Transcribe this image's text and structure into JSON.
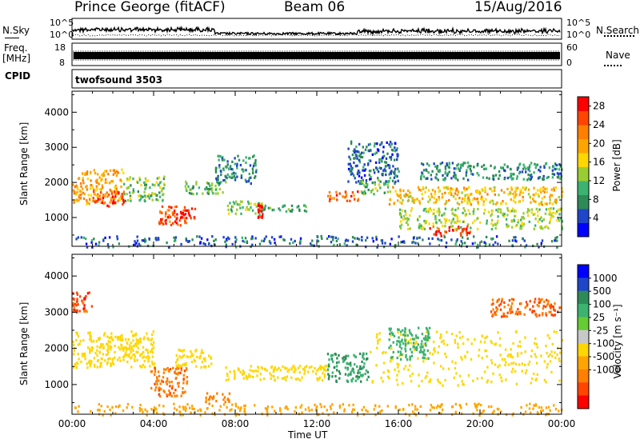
{
  "header": {
    "station": "Prince George (fitACF)",
    "beam": "Beam 06",
    "date": "15/Aug/2016"
  },
  "strips": {
    "nsky_label": "N.Sky",
    "nsearch_label": "N.Search",
    "freq_label_line1": "Freq.",
    "freq_label_line2": "[MHz]",
    "nave_label": "Nave",
    "cpid_label": "CPID",
    "cpid_value": "twofsound 3503",
    "nsky_ticks": [
      "10^5",
      "10^0"
    ],
    "nsearch_ticks": [
      "10^5",
      "10^0"
    ],
    "freq_ticks": [
      "18",
      "8"
    ],
    "nave_ticks": [
      "60",
      "0"
    ]
  },
  "chart_data": [
    {
      "type": "heatmap",
      "title": "",
      "ylabel": "Slant Range [km]",
      "xlabel": "",
      "ylim": [
        180,
        4600
      ],
      "yticks": [
        1000,
        2000,
        3000,
        4000
      ],
      "colorbar": {
        "label": "Power [dB]",
        "ticks": [
          4,
          8,
          12,
          16,
          20,
          24,
          28
        ],
        "range": [
          0,
          30
        ],
        "colors": [
          "#0000ff",
          "#1f46c8",
          "#2e8b57",
          "#3cb371",
          "#9acd32",
          "#ffd700",
          "#ffa500",
          "#ff7f00",
          "#ff4500",
          "#ff0000"
        ]
      },
      "blobs": [
        {
          "t": [
            0.0,
            2.5
          ],
          "r": [
            1400,
            2400
          ],
          "v": 20
        },
        {
          "t": [
            1.0,
            2.5
          ],
          "r": [
            1350,
            1800
          ],
          "v": 26
        },
        {
          "t": [
            2.5,
            4.5
          ],
          "r": [
            1500,
            2200
          ],
          "v": 12
        },
        {
          "t": [
            4.2,
            5.6
          ],
          "r": [
            800,
            1400
          ],
          "v": 24
        },
        {
          "t": [
            5.0,
            6.0
          ],
          "r": [
            900,
            1300
          ],
          "v": 28
        },
        {
          "t": [
            5.5,
            7.5
          ],
          "r": [
            1700,
            2100
          ],
          "v": 10
        },
        {
          "t": [
            7.0,
            9.0
          ],
          "r": [
            2000,
            2800
          ],
          "v": 8
        },
        {
          "t": [
            7.5,
            9.5
          ],
          "r": [
            1100,
            1500
          ],
          "v": 12
        },
        {
          "t": [
            9.0,
            9.3
          ],
          "r": [
            1000,
            1400
          ],
          "v": 28
        },
        {
          "t": [
            9.5,
            11.5
          ],
          "r": [
            1200,
            1400
          ],
          "v": 10
        },
        {
          "t": [
            12.5,
            14.0
          ],
          "r": [
            1500,
            1800
          ],
          "v": 24
        },
        {
          "t": [
            13.5,
            16.0
          ],
          "r": [
            2000,
            3200
          ],
          "v": 6
        },
        {
          "t": [
            14.0,
            15.5
          ],
          "r": [
            1700,
            2100
          ],
          "v": 12
        },
        {
          "t": [
            15.5,
            24.0
          ],
          "r": [
            1400,
            1900
          ],
          "v": 18
        },
        {
          "t": [
            16.0,
            24.0
          ],
          "r": [
            700,
            1300
          ],
          "v": 14
        },
        {
          "t": [
            17.5,
            19.5
          ],
          "r": [
            500,
            800
          ],
          "v": 26
        },
        {
          "t": [
            17.0,
            24.0
          ],
          "r": [
            2100,
            2600
          ],
          "v": 8
        },
        {
          "t": [
            0.0,
            24.0
          ],
          "r": [
            180,
            500
          ],
          "v": 6
        }
      ]
    },
    {
      "type": "heatmap",
      "title": "",
      "ylabel": "Slant Range [km]",
      "xlabel": "Time UT",
      "ylim": [
        180,
        4600
      ],
      "yticks": [
        1000,
        2000,
        3000,
        4000
      ],
      "xticks": [
        "00:00",
        "04:00",
        "08:00",
        "12:00",
        "16:00",
        "20:00",
        "00:00"
      ],
      "colorbar": {
        "label": "Velocity [m s⁻¹]",
        "ticks": [
          "1000",
          "500",
          "100",
          "25",
          "-25",
          "-100",
          "-500",
          "-1000"
        ],
        "colors": [
          "#0000ff",
          "#1f46c8",
          "#2e8b57",
          "#3cb371",
          "#66cc33",
          "#c8c8c8",
          "#ffd700",
          "#ffa500",
          "#ff7f00",
          "#ff4500",
          "#ff0000"
        ]
      },
      "blobs": [
        {
          "t": [
            0.0,
            4.0
          ],
          "r": [
            1500,
            2500
          ],
          "v": 0
        },
        {
          "t": [
            3.8,
            5.6
          ],
          "r": [
            700,
            1500
          ],
          "v": -250
        },
        {
          "t": [
            5.0,
            6.8
          ],
          "r": [
            1500,
            2000
          ],
          "v": 0
        },
        {
          "t": [
            6.5,
            7.8
          ],
          "r": [
            500,
            800
          ],
          "v": -150
        },
        {
          "t": [
            7.5,
            12.5
          ],
          "r": [
            1150,
            1550
          ],
          "v": 0
        },
        {
          "t": [
            12.5,
            14.5
          ],
          "r": [
            1100,
            1900
          ],
          "v": 300
        },
        {
          "t": [
            14.5,
            24.0
          ],
          "r": [
            1000,
            2500
          ],
          "v": 0
        },
        {
          "t": [
            15.5,
            17.5
          ],
          "r": [
            1700,
            2600
          ],
          "v": 200
        },
        {
          "t": [
            0.0,
            24.0
          ],
          "r": [
            180,
            500
          ],
          "v": -60
        },
        {
          "t": [
            0.0,
            1.0
          ],
          "r": [
            3000,
            3600
          ],
          "v": -400
        },
        {
          "t": [
            20.5,
            24.0
          ],
          "r": [
            2900,
            3400
          ],
          "v": -300
        }
      ]
    }
  ],
  "time_axis": {
    "label": "Time UT",
    "ticks": [
      "00:00",
      "04:00",
      "08:00",
      "12:00",
      "16:00",
      "20:00",
      "00:00"
    ]
  }
}
